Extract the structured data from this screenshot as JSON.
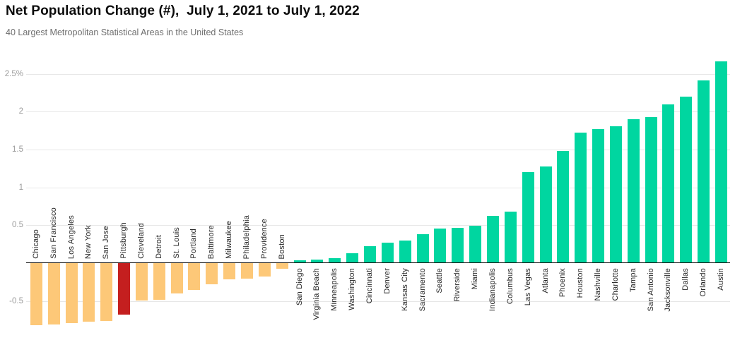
{
  "header": {
    "title": "Net Population Change (#),  July 1, 2021 to July 1, 2022",
    "subtitle": "40 Largest Metropolitan Statistical Areas in the United States"
  },
  "colors": {
    "positive_bar": "#00D6A0",
    "negative_bar": "#FDC878",
    "highlight_bar": "#C41F1F",
    "gridline": "#E7E7E7",
    "zero_line": "#0A0A0A",
    "y_tick_label": "#9C9C9C",
    "x_label": "#262626"
  },
  "chart_data": {
    "type": "bar",
    "title": "Net Population Change (#),  July 1, 2021 to July 1, 2022",
    "subtitle": "40 Largest Metropolitan Statistical Areas in the United States",
    "unit": "percent",
    "ylim": [
      -0.9,
      2.75
    ],
    "grid": true,
    "legend_position": "none",
    "highlighted_category": "Pittsburgh",
    "yticks": [
      {
        "value": 2.5,
        "label": "2.5%"
      },
      {
        "value": 2,
        "label": "2"
      },
      {
        "value": 1.5,
        "label": "1.5"
      },
      {
        "value": 1,
        "label": "1"
      },
      {
        "value": 0.5,
        "label": "0.5"
      },
      {
        "value": -0.5,
        "label": "-0.5"
      }
    ],
    "categories": [
      "Chicago",
      "San Francisco",
      "Los Angeles",
      "New York",
      "San Jose",
      "Pittsburgh",
      "Cleveland",
      "Detroit",
      "St. Louis",
      "Portland",
      "Baltimore",
      "Milwaukee",
      "Philadelphia",
      "Providence",
      "Boston",
      "San Diego",
      "Virginia Beach",
      "Minneapolis",
      "Washington",
      "Cincinnati",
      "Denver",
      "Kansas City",
      "Sacramento",
      "Seattle",
      "Riverside",
      "Miami",
      "Indianapolis",
      "Columbus",
      "Las Vegas",
      "Atlanta",
      "Phoenix",
      "Houston",
      "Nashville",
      "Charlotte",
      "Tampa",
      "San Antonio",
      "Jacksonville",
      "Dallas",
      "Orlando",
      "Austin"
    ],
    "values": [
      -0.82,
      -0.81,
      -0.79,
      -0.77,
      -0.76,
      -0.68,
      -0.49,
      -0.48,
      -0.4,
      -0.35,
      -0.28,
      -0.21,
      -0.2,
      -0.18,
      -0.07,
      0.04,
      0.05,
      0.07,
      0.13,
      0.22,
      0.27,
      0.3,
      0.38,
      0.46,
      0.47,
      0.49,
      0.62,
      0.68,
      1.2,
      1.28,
      1.48,
      1.72,
      1.77,
      1.81,
      1.9,
      1.93,
      2.1,
      2.2,
      2.41,
      2.66
    ]
  }
}
